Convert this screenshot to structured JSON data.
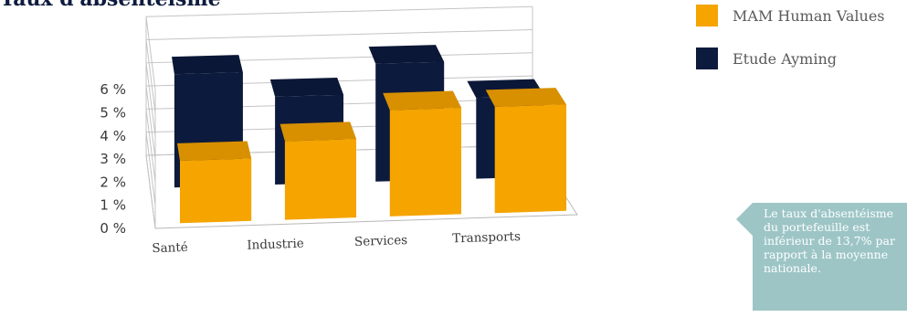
{
  "chart_data": {
    "type": "bar",
    "title": "Taux d'absentéisme",
    "categories": [
      "Santé",
      "Industrie",
      "Services",
      "Transports"
    ],
    "series": [
      {
        "name": "MAM Human Values",
        "values": [
          2.7,
          3.4,
          4.6,
          4.6
        ],
        "color": "#f5a400"
      },
      {
        "name": "Etude Ayming",
        "values": [
          4.9,
          3.8,
          5.1,
          3.5
        ],
        "color": "#0c1a3d"
      }
    ],
    "ylim": [
      0,
      6
    ],
    "yticks": [
      "0 %",
      "1 %",
      "2 %",
      "3 %",
      "4 %",
      "5 %",
      "6 %"
    ],
    "xlabel": "",
    "ylabel": "",
    "grid": true,
    "legend": "top-right"
  },
  "callout": {
    "text": "Le taux d'absentéisme\ndu portefeuille est\ninférieur de 13,7% par\nrapport à la moyenne\nnationale."
  }
}
